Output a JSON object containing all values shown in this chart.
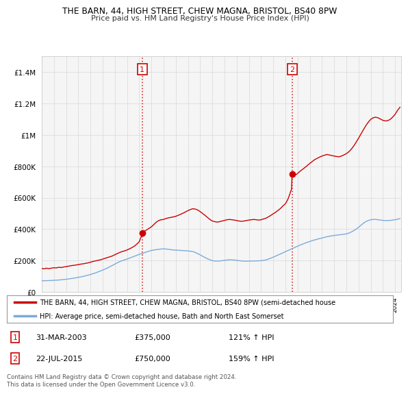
{
  "title1": "THE BARN, 44, HIGH STREET, CHEW MAGNA, BRISTOL, BS40 8PW",
  "title2": "Price paid vs. HM Land Registry's House Price Index (HPI)",
  "legend_line1": "THE BARN, 44, HIGH STREET, CHEW MAGNA, BRISTOL, BS40 8PW (semi-detached house",
  "legend_line2": "HPI: Average price, semi-detached house, Bath and North East Somerset",
  "footer": "Contains HM Land Registry data © Crown copyright and database right 2024.\nThis data is licensed under the Open Government Licence v3.0.",
  "annotation1_date": "31-MAR-2003",
  "annotation1_price": "£375,000",
  "annotation1_hpi": "121% ↑ HPI",
  "annotation2_date": "22-JUL-2015",
  "annotation2_price": "£750,000",
  "annotation2_hpi": "159% ↑ HPI",
  "red_color": "#cc0000",
  "blue_color": "#7aabdb",
  "grid_color": "#cccccc",
  "bg_color": "#f8f8f8",
  "ylim_max": 1500000,
  "vline1_year": 2003.25,
  "vline2_year": 2015.55,
  "marker1_price": 375000,
  "marker2_price": 750000,
  "red_line_data": [
    [
      1995.0,
      150000
    ],
    [
      1995.2,
      148000
    ],
    [
      1995.4,
      152000
    ],
    [
      1995.6,
      149000
    ],
    [
      1995.8,
      153000
    ],
    [
      1996.0,
      155000
    ],
    [
      1996.2,
      154000
    ],
    [
      1996.4,
      158000
    ],
    [
      1996.6,
      156000
    ],
    [
      1996.8,
      160000
    ],
    [
      1997.0,
      162000
    ],
    [
      1997.2,
      165000
    ],
    [
      1997.4,
      168000
    ],
    [
      1997.6,
      170000
    ],
    [
      1997.8,
      172000
    ],
    [
      1998.0,
      175000
    ],
    [
      1998.2,
      178000
    ],
    [
      1998.4,
      180000
    ],
    [
      1998.6,
      183000
    ],
    [
      1998.8,
      186000
    ],
    [
      1999.0,
      190000
    ],
    [
      1999.2,
      195000
    ],
    [
      1999.4,
      198000
    ],
    [
      1999.6,
      202000
    ],
    [
      1999.8,
      205000
    ],
    [
      2000.0,
      210000
    ],
    [
      2000.2,
      215000
    ],
    [
      2000.4,
      220000
    ],
    [
      2000.6,
      225000
    ],
    [
      2000.8,
      230000
    ],
    [
      2001.0,
      238000
    ],
    [
      2001.2,
      245000
    ],
    [
      2001.4,
      252000
    ],
    [
      2001.6,
      258000
    ],
    [
      2001.8,
      262000
    ],
    [
      2002.0,
      268000
    ],
    [
      2002.2,
      275000
    ],
    [
      2002.4,
      283000
    ],
    [
      2002.6,
      292000
    ],
    [
      2002.8,
      305000
    ],
    [
      2003.0,
      320000
    ],
    [
      2003.1,
      340000
    ],
    [
      2003.2,
      360000
    ],
    [
      2003.25,
      375000
    ],
    [
      2003.3,
      380000
    ],
    [
      2003.5,
      390000
    ],
    [
      2003.7,
      400000
    ],
    [
      2004.0,
      415000
    ],
    [
      2004.2,
      430000
    ],
    [
      2004.4,
      445000
    ],
    [
      2004.6,
      455000
    ],
    [
      2004.8,
      460000
    ],
    [
      2005.0,
      462000
    ],
    [
      2005.2,
      468000
    ],
    [
      2005.4,
      472000
    ],
    [
      2005.6,
      475000
    ],
    [
      2005.8,
      478000
    ],
    [
      2006.0,
      482000
    ],
    [
      2006.2,
      488000
    ],
    [
      2006.4,
      495000
    ],
    [
      2006.6,
      502000
    ],
    [
      2006.8,
      510000
    ],
    [
      2007.0,
      518000
    ],
    [
      2007.2,
      525000
    ],
    [
      2007.4,
      530000
    ],
    [
      2007.6,
      528000
    ],
    [
      2007.8,
      522000
    ],
    [
      2008.0,
      512000
    ],
    [
      2008.2,
      500000
    ],
    [
      2008.4,
      488000
    ],
    [
      2008.6,
      475000
    ],
    [
      2008.8,
      462000
    ],
    [
      2009.0,
      452000
    ],
    [
      2009.2,
      448000
    ],
    [
      2009.4,
      445000
    ],
    [
      2009.6,
      448000
    ],
    [
      2009.8,
      452000
    ],
    [
      2010.0,
      456000
    ],
    [
      2010.2,
      460000
    ],
    [
      2010.4,
      462000
    ],
    [
      2010.6,
      460000
    ],
    [
      2010.8,
      458000
    ],
    [
      2011.0,
      455000
    ],
    [
      2011.2,
      452000
    ],
    [
      2011.4,
      450000
    ],
    [
      2011.6,
      452000
    ],
    [
      2011.8,
      455000
    ],
    [
      2012.0,
      458000
    ],
    [
      2012.2,
      460000
    ],
    [
      2012.4,
      462000
    ],
    [
      2012.6,
      460000
    ],
    [
      2012.8,
      458000
    ],
    [
      2013.0,
      460000
    ],
    [
      2013.2,
      465000
    ],
    [
      2013.4,
      470000
    ],
    [
      2013.6,
      478000
    ],
    [
      2013.8,
      488000
    ],
    [
      2014.0,
      498000
    ],
    [
      2014.2,
      508000
    ],
    [
      2014.4,
      520000
    ],
    [
      2014.6,
      532000
    ],
    [
      2014.8,
      548000
    ],
    [
      2015.0,
      562000
    ],
    [
      2015.1,
      575000
    ],
    [
      2015.2,
      590000
    ],
    [
      2015.3,
      610000
    ],
    [
      2015.4,
      632000
    ],
    [
      2015.5,
      655000
    ],
    [
      2015.55,
      750000
    ],
    [
      2015.6,
      760000
    ],
    [
      2015.7,
      752000
    ],
    [
      2015.8,
      745000
    ],
    [
      2015.9,
      748000
    ],
    [
      2016.0,
      755000
    ],
    [
      2016.2,
      768000
    ],
    [
      2016.4,
      780000
    ],
    [
      2016.6,
      792000
    ],
    [
      2016.8,
      805000
    ],
    [
      2017.0,
      818000
    ],
    [
      2017.2,
      830000
    ],
    [
      2017.4,
      842000
    ],
    [
      2017.6,
      850000
    ],
    [
      2017.8,
      858000
    ],
    [
      2018.0,
      865000
    ],
    [
      2018.2,
      870000
    ],
    [
      2018.4,
      875000
    ],
    [
      2018.6,
      872000
    ],
    [
      2018.8,
      868000
    ],
    [
      2019.0,
      865000
    ],
    [
      2019.2,
      862000
    ],
    [
      2019.4,
      860000
    ],
    [
      2019.6,
      865000
    ],
    [
      2019.8,
      872000
    ],
    [
      2020.0,
      880000
    ],
    [
      2020.2,
      892000
    ],
    [
      2020.4,
      908000
    ],
    [
      2020.6,
      928000
    ],
    [
      2020.8,
      952000
    ],
    [
      2021.0,
      978000
    ],
    [
      2021.2,
      1005000
    ],
    [
      2021.4,
      1032000
    ],
    [
      2021.6,
      1058000
    ],
    [
      2021.8,
      1080000
    ],
    [
      2022.0,
      1098000
    ],
    [
      2022.2,
      1108000
    ],
    [
      2022.4,
      1112000
    ],
    [
      2022.6,
      1108000
    ],
    [
      2022.8,
      1100000
    ],
    [
      2023.0,
      1092000
    ],
    [
      2023.2,
      1088000
    ],
    [
      2023.4,
      1090000
    ],
    [
      2023.6,
      1098000
    ],
    [
      2023.8,
      1112000
    ],
    [
      2024.0,
      1130000
    ],
    [
      2024.2,
      1155000
    ],
    [
      2024.4,
      1175000
    ]
  ],
  "blue_line_data": [
    [
      1995.0,
      72000
    ],
    [
      1995.2,
      72500
    ],
    [
      1995.4,
      73000
    ],
    [
      1995.6,
      73500
    ],
    [
      1995.8,
      74000
    ],
    [
      1996.0,
      75000
    ],
    [
      1996.2,
      76000
    ],
    [
      1996.4,
      77000
    ],
    [
      1996.6,
      78500
    ],
    [
      1996.8,
      80000
    ],
    [
      1997.0,
      82000
    ],
    [
      1997.2,
      84000
    ],
    [
      1997.4,
      86000
    ],
    [
      1997.6,
      88500
    ],
    [
      1997.8,
      91000
    ],
    [
      1998.0,
      94000
    ],
    [
      1998.2,
      97000
    ],
    [
      1998.4,
      100000
    ],
    [
      1998.6,
      104000
    ],
    [
      1998.8,
      108000
    ],
    [
      1999.0,
      112000
    ],
    [
      1999.2,
      117000
    ],
    [
      1999.4,
      122000
    ],
    [
      1999.6,
      128000
    ],
    [
      1999.8,
      134000
    ],
    [
      2000.0,
      140000
    ],
    [
      2000.2,
      147000
    ],
    [
      2000.4,
      154000
    ],
    [
      2000.6,
      162000
    ],
    [
      2000.8,
      170000
    ],
    [
      2001.0,
      178000
    ],
    [
      2001.2,
      186000
    ],
    [
      2001.4,
      194000
    ],
    [
      2001.6,
      200000
    ],
    [
      2001.8,
      205000
    ],
    [
      2002.0,
      210000
    ],
    [
      2002.2,
      216000
    ],
    [
      2002.4,
      222000
    ],
    [
      2002.6,
      228000
    ],
    [
      2002.8,
      234000
    ],
    [
      2003.0,
      240000
    ],
    [
      2003.2,
      245000
    ],
    [
      2003.4,
      250000
    ],
    [
      2003.6,
      255000
    ],
    [
      2003.8,
      260000
    ],
    [
      2004.0,
      265000
    ],
    [
      2004.2,
      268000
    ],
    [
      2004.4,
      270000
    ],
    [
      2004.6,
      272000
    ],
    [
      2004.8,
      274000
    ],
    [
      2005.0,
      275000
    ],
    [
      2005.2,
      274000
    ],
    [
      2005.4,
      272000
    ],
    [
      2005.6,
      270000
    ],
    [
      2005.8,
      268000
    ],
    [
      2006.0,
      267000
    ],
    [
      2006.2,
      266000
    ],
    [
      2006.4,
      265000
    ],
    [
      2006.6,
      264000
    ],
    [
      2006.8,
      263000
    ],
    [
      2007.0,
      262000
    ],
    [
      2007.2,
      260000
    ],
    [
      2007.4,
      258000
    ],
    [
      2007.6,
      252000
    ],
    [
      2007.8,
      245000
    ],
    [
      2008.0,
      237000
    ],
    [
      2008.2,
      228000
    ],
    [
      2008.4,
      220000
    ],
    [
      2008.6,
      212000
    ],
    [
      2008.8,
      206000
    ],
    [
      2009.0,
      200000
    ],
    [
      2009.2,
      198000
    ],
    [
      2009.4,
      197000
    ],
    [
      2009.6,
      198000
    ],
    [
      2009.8,
      200000
    ],
    [
      2010.0,
      202000
    ],
    [
      2010.2,
      204000
    ],
    [
      2010.4,
      206000
    ],
    [
      2010.6,
      205000
    ],
    [
      2010.8,
      204000
    ],
    [
      2011.0,
      202000
    ],
    [
      2011.2,
      200000
    ],
    [
      2011.4,
      198000
    ],
    [
      2011.6,
      197000
    ],
    [
      2011.8,
      197000
    ],
    [
      2012.0,
      197000
    ],
    [
      2012.2,
      197500
    ],
    [
      2012.4,
      198000
    ],
    [
      2012.6,
      198500
    ],
    [
      2012.8,
      199000
    ],
    [
      2013.0,
      200000
    ],
    [
      2013.2,
      202000
    ],
    [
      2013.4,
      205000
    ],
    [
      2013.6,
      210000
    ],
    [
      2013.8,
      216000
    ],
    [
      2014.0,
      222000
    ],
    [
      2014.2,
      229000
    ],
    [
      2014.4,
      236000
    ],
    [
      2014.6,
      243000
    ],
    [
      2014.8,
      250000
    ],
    [
      2015.0,
      257000
    ],
    [
      2015.2,
      264000
    ],
    [
      2015.4,
      271000
    ],
    [
      2015.6,
      278000
    ],
    [
      2015.8,
      285000
    ],
    [
      2016.0,
      292000
    ],
    [
      2016.2,
      299000
    ],
    [
      2016.4,
      305000
    ],
    [
      2016.6,
      311000
    ],
    [
      2016.8,
      317000
    ],
    [
      2017.0,
      322000
    ],
    [
      2017.2,
      327000
    ],
    [
      2017.4,
      332000
    ],
    [
      2017.6,
      336000
    ],
    [
      2017.8,
      340000
    ],
    [
      2018.0,
      344000
    ],
    [
      2018.2,
      348000
    ],
    [
      2018.4,
      352000
    ],
    [
      2018.6,
      355000
    ],
    [
      2018.8,
      358000
    ],
    [
      2019.0,
      360000
    ],
    [
      2019.2,
      362000
    ],
    [
      2019.4,
      364000
    ],
    [
      2019.6,
      366000
    ],
    [
      2019.8,
      368000
    ],
    [
      2020.0,
      370000
    ],
    [
      2020.2,
      375000
    ],
    [
      2020.4,
      382000
    ],
    [
      2020.6,
      390000
    ],
    [
      2020.8,
      400000
    ],
    [
      2021.0,
      412000
    ],
    [
      2021.2,
      425000
    ],
    [
      2021.4,
      438000
    ],
    [
      2021.6,
      448000
    ],
    [
      2021.8,
      455000
    ],
    [
      2022.0,
      460000
    ],
    [
      2022.2,
      462000
    ],
    [
      2022.4,
      462000
    ],
    [
      2022.6,
      460000
    ],
    [
      2022.8,
      458000
    ],
    [
      2023.0,
      456000
    ],
    [
      2023.2,
      455000
    ],
    [
      2023.4,
      455000
    ],
    [
      2023.6,
      456000
    ],
    [
      2023.8,
      458000
    ],
    [
      2024.0,
      460000
    ],
    [
      2024.2,
      463000
    ],
    [
      2024.4,
      468000
    ]
  ]
}
